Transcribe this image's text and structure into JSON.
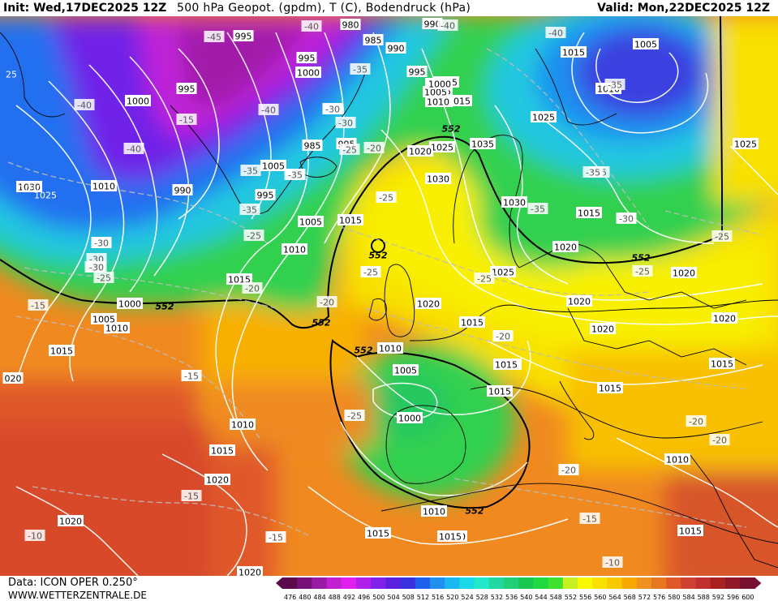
{
  "header": {
    "init": "Init: Wed,17DEC2025 12Z",
    "title": "500 hPa Geopot. (gpdm), T (C), Bodendruck (hPa)",
    "valid": "Valid: Mon,22DEC2025 12Z"
  },
  "footer": {
    "source": "Data: ICON OPER 0.250°",
    "website": "WWW.WETTERZENTRALE.DE"
  },
  "colors": {
    "c476": "#5a0a4a",
    "c480": "#78107a",
    "c484": "#9a1aa8",
    "c488": "#c020d0",
    "c492": "#e020f0",
    "c496": "#b020e8",
    "c500": "#8020e8",
    "c504": "#5a20e0",
    "c508": "#3a30e0",
    "c512": "#2060ee",
    "c516": "#1f8ff0",
    "c520": "#19b8f0",
    "c524": "#1ad8e8",
    "c528": "#20e8c8",
    "c532": "#20d8a0",
    "c536": "#20d078",
    "c540": "#18c850",
    "c544": "#20d840",
    "c548": "#40e030",
    "c552": "#c8f020",
    "c556": "#f8f800",
    "c560": "#f8e000",
    "c564": "#f8c800",
    "c568": "#f8a800",
    "c572": "#f09020",
    "c576": "#e87820",
    "c580": "#e05a28",
    "c584": "#d04030",
    "c588": "#c03030",
    "c592": "#a82020",
    "c596": "#901828",
    "c600": "#781030",
    "isobar": "#ffffff",
    "isotherm": "#c0c0c0",
    "coast": "#000000",
    "contour552": "#000000"
  },
  "scale": {
    "values": [
      "476",
      "480",
      "484",
      "488",
      "492",
      "496",
      "500",
      "504",
      "508",
      "512",
      "516",
      "520",
      "524",
      "528",
      "532",
      "536",
      "540",
      "544",
      "548",
      "552",
      "556",
      "560",
      "564",
      "568",
      "572",
      "576",
      "580",
      "584",
      "588",
      "592",
      "596",
      "600"
    ]
  },
  "isobar_labels": [
    {
      "t": "1000"
    },
    {
      "t": "995"
    },
    {
      "t": "995"
    },
    {
      "t": "990"
    },
    {
      "t": "1000"
    },
    {
      "t": "995"
    },
    {
      "t": "985"
    },
    {
      "t": "980"
    },
    {
      "t": "985"
    },
    {
      "t": "990"
    },
    {
      "t": "995"
    },
    {
      "t": "1000"
    },
    {
      "t": "995"
    },
    {
      "t": "1005"
    },
    {
      "t": "1010"
    },
    {
      "t": "1015"
    },
    {
      "t": "1005"
    },
    {
      "t": "1010"
    },
    {
      "t": "1015"
    },
    {
      "t": "1025"
    },
    {
      "t": "1035"
    },
    {
      "t": "1030"
    },
    {
      "t": "1030"
    },
    {
      "t": "1015"
    },
    {
      "t": "1020"
    },
    {
      "t": "1025"
    },
    {
      "t": "1020"
    },
    {
      "t": "1015"
    },
    {
      "t": "1015"
    },
    {
      "t": "1010"
    },
    {
      "t": "1005"
    },
    {
      "t": "1000"
    },
    {
      "t": "1010"
    },
    {
      "t": "1015"
    },
    {
      "t": "1020"
    },
    {
      "t": "1020"
    },
    {
      "t": "1015"
    },
    {
      "t": "1020"
    },
    {
      "t": "1015"
    },
    {
      "t": "1020"
    },
    {
      "t": "1025"
    },
    {
      "t": "1005"
    },
    {
      "t": "1010"
    },
    {
      "t": "1015"
    },
    {
      "t": "1025"
    },
    {
      "t": "1030"
    },
    {
      "t": "1010"
    },
    {
      "t": "990"
    },
    {
      "t": "1005"
    },
    {
      "t": "995"
    },
    {
      "t": "1000"
    },
    {
      "t": "1010"
    },
    {
      "t": "1005"
    },
    {
      "t": "1010"
    },
    {
      "t": "1015"
    },
    {
      "t": "1020"
    },
    {
      "t": "1015"
    },
    {
      "t": "1010"
    },
    {
      "t": "1015"
    },
    {
      "t": "1020"
    },
    {
      "t": "1020"
    },
    {
      "t": "1015"
    },
    {
      "t": "1010"
    },
    {
      "t": "1015"
    },
    {
      "t": "1015"
    },
    {
      "t": "1010"
    },
    {
      "t": "1015"
    },
    {
      "t": "1005"
    },
    {
      "t": "1000"
    },
    {
      "t": "1010"
    },
    {
      "t": "020"
    },
    {
      "t": "1020"
    },
    {
      "t": "1020"
    },
    {
      "t": "1015"
    },
    {
      "t": "1010"
    },
    {
      "t": "1005"
    },
    {
      "t": "1000"
    },
    {
      "t": "1015"
    },
    {
      "t": "1015"
    }
  ],
  "temp_labels": [
    {
      "t": "-45"
    },
    {
      "t": "-40"
    },
    {
      "t": "-40"
    },
    {
      "t": "-40"
    },
    {
      "t": "-35"
    },
    {
      "t": "-35"
    },
    {
      "t": "-35"
    },
    {
      "t": "-40"
    },
    {
      "t": "-40"
    },
    {
      "t": "-35"
    },
    {
      "t": "-35"
    },
    {
      "t": "-30"
    },
    {
      "t": "-30"
    },
    {
      "t": "-25"
    },
    {
      "t": "-25"
    },
    {
      "t": "-20"
    },
    {
      "t": "-30"
    },
    {
      "t": "-35"
    },
    {
      "t": "-30"
    },
    {
      "t": "-25"
    },
    {
      "t": "-20"
    },
    {
      "t": "-25"
    },
    {
      "t": "-20"
    },
    {
      "t": "-20"
    },
    {
      "t": "-25"
    },
    {
      "t": "-15"
    },
    {
      "t": "-15"
    },
    {
      "t": "-15"
    },
    {
      "t": "-15"
    },
    {
      "t": "-10"
    },
    {
      "t": "-25"
    },
    {
      "t": "-25"
    },
    {
      "t": "-20"
    },
    {
      "t": "-20"
    },
    {
      "t": "-20"
    },
    {
      "t": "-15"
    },
    {
      "t": "-10"
    },
    {
      "t": "-15"
    },
    {
      "t": "-40"
    },
    {
      "t": "-35"
    },
    {
      "t": "-35"
    },
    {
      "t": "-30"
    },
    {
      "t": "-25"
    },
    {
      "t": "-25"
    },
    {
      "t": "-20"
    },
    {
      "t": "-15"
    },
    {
      "t": "-15"
    },
    {
      "t": "-25"
    },
    {
      "t": "-20"
    },
    {
      "t": "-30"
    },
    {
      "t": "-25"
    },
    {
      "t": "-30"
    },
    {
      "t": "-35"
    },
    {
      "t": "-30"
    },
    {
      "t": "-25"
    },
    {
      "t": "-35"
    },
    {
      "t": "-30"
    }
  ],
  "contour_labels": [
    {
      "t": "552"
    },
    {
      "t": "552"
    },
    {
      "t": "552"
    },
    {
      "t": "552"
    },
    {
      "t": "552"
    },
    {
      "t": "552"
    },
    {
      "t": "552"
    },
    {
      "t": "552"
    }
  ],
  "edge_labels": [
    {
      "t": "25"
    },
    {
      "t": "1030"
    },
    {
      "t": "1025"
    }
  ]
}
